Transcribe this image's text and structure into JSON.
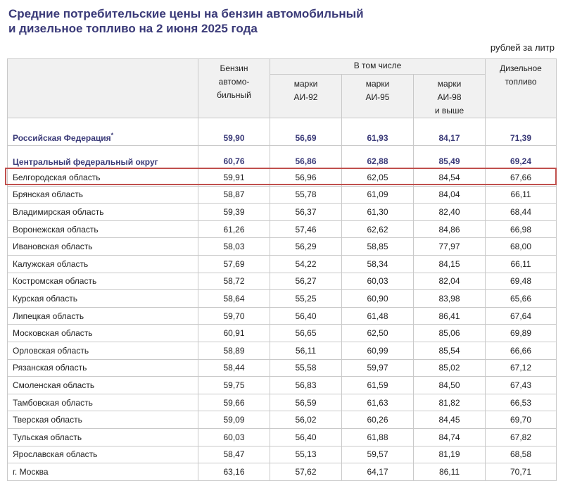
{
  "title_line1": "Средние потребительские цены на бензин автомобильный",
  "title_line2": "и дизельное топливо на 2 июня 2025 года",
  "units": "рублей за литр",
  "headers": {
    "region": "",
    "petrol": "Бензин\nавтомо-\nбильный",
    "including": "В том числе",
    "ai92": "марки\nАИ-92",
    "ai95": "марки\nАИ-95",
    "ai98": "марки\nАИ-98\nи выше",
    "diesel": "Дизельное\nтопливо"
  },
  "summary_rows": [
    {
      "name": "Российская Федерация",
      "mark": "*",
      "values": [
        "59,90",
        "56,69",
        "61,93",
        "84,17",
        "71,39"
      ]
    },
    {
      "name": "Центральный федеральный округ",
      "mark": "",
      "values": [
        "60,76",
        "56,86",
        "62,88",
        "85,49",
        "69,24"
      ]
    }
  ],
  "rows": [
    {
      "name": "Белгородская область",
      "values": [
        "59,91",
        "56,96",
        "62,05",
        "84,54",
        "67,66"
      ],
      "highlighted": true
    },
    {
      "name": "Брянская область",
      "values": [
        "58,87",
        "55,78",
        "61,09",
        "84,04",
        "66,11"
      ]
    },
    {
      "name": "Владимирская область",
      "values": [
        "59,39",
        "56,37",
        "61,30",
        "82,40",
        "68,44"
      ]
    },
    {
      "name": "Воронежская область",
      "values": [
        "61,26",
        "57,46",
        "62,62",
        "84,86",
        "66,98"
      ]
    },
    {
      "name": "Ивановская область",
      "values": [
        "58,03",
        "56,29",
        "58,85",
        "77,97",
        "68,00"
      ]
    },
    {
      "name": "Калужская область",
      "values": [
        "57,69",
        "54,22",
        "58,34",
        "84,15",
        "66,11"
      ]
    },
    {
      "name": "Костромская область",
      "values": [
        "58,72",
        "56,27",
        "60,03",
        "82,04",
        "69,48"
      ]
    },
    {
      "name": "Курская область",
      "values": [
        "58,64",
        "55,25",
        "60,90",
        "83,98",
        "65,66"
      ]
    },
    {
      "name": "Липецкая область",
      "values": [
        "59,70",
        "56,40",
        "61,48",
        "86,41",
        "67,64"
      ]
    },
    {
      "name": "Московская область",
      "values": [
        "60,91",
        "56,65",
        "62,50",
        "85,06",
        "69,89"
      ]
    },
    {
      "name": "Орловская область",
      "values": [
        "58,89",
        "56,11",
        "60,99",
        "85,54",
        "66,66"
      ]
    },
    {
      "name": "Рязанская область",
      "values": [
        "58,44",
        "55,58",
        "59,97",
        "85,02",
        "67,12"
      ]
    },
    {
      "name": "Смоленская область",
      "values": [
        "59,75",
        "56,83",
        "61,59",
        "84,50",
        "67,43"
      ]
    },
    {
      "name": "Тамбовская область",
      "values": [
        "59,66",
        "56,59",
        "61,63",
        "81,82",
        "66,53"
      ]
    },
    {
      "name": "Тверская область",
      "values": [
        "59,09",
        "56,02",
        "60,26",
        "84,45",
        "69,70"
      ]
    },
    {
      "name": "Тульская область",
      "values": [
        "60,03",
        "56,40",
        "61,88",
        "84,74",
        "67,82"
      ]
    },
    {
      "name": "Ярославская область",
      "values": [
        "58,47",
        "55,13",
        "59,57",
        "81,19",
        "68,58"
      ]
    },
    {
      "name": "г. Москва",
      "values": [
        "63,16",
        "57,62",
        "64,17",
        "86,11",
        "70,71"
      ]
    }
  ],
  "colors": {
    "title": "#3a3a78",
    "header_bg": "#f1f1f1",
    "grid": "#c9c9c9",
    "highlight": "#c0504d"
  }
}
